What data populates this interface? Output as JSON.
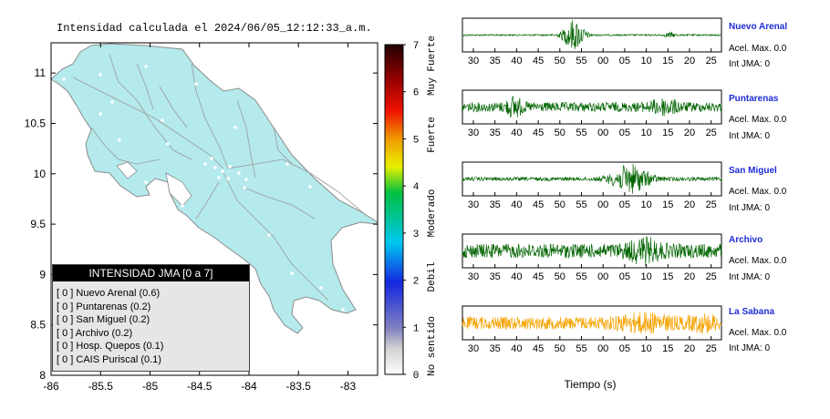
{
  "map": {
    "title": "Intensidad calculada el 2024/06/05_12:12:33_a.m.",
    "x_ticks": [
      "-86",
      "-85.5",
      "-85",
      "-84.5",
      "-84",
      "-83.5",
      "-83"
    ],
    "y_ticks": [
      "11",
      "10.5",
      "10",
      "9.5",
      "9",
      "8.5",
      "8"
    ],
    "land_color": "#b4eaec"
  },
  "legend": {
    "header": "INTENSIDAD JMA [0 a 7]",
    "items": [
      {
        "value": "[ 0 ]",
        "label": "Nuevo Arenal (0.6)"
      },
      {
        "value": "[ 0 ]",
        "label": "Puntarenas (0.2)"
      },
      {
        "value": "[ 0 ]",
        "label": "San Miguel (0.2)"
      },
      {
        "value": "[ 0 ]",
        "label": "Archivo (0.2)"
      },
      {
        "value": "[ 0 ]",
        "label": "Hosp. Quepos (0.1)"
      },
      {
        "value": "[ 0 ]",
        "label": "CAIS Puriscal (0.1)"
      }
    ]
  },
  "scale": {
    "ticks": [
      "0",
      "1",
      "2",
      "3",
      "4",
      "5",
      "6",
      "7"
    ],
    "category_labels": [
      "No sentido",
      "Debil",
      "Moderado",
      "Fuerte",
      "Muy Fuerte"
    ]
  },
  "stations": [
    {
      "name": "Nuevo Arenal",
      "acc_label": "Acel. Max. 0.0",
      "jma_label": "Int JMA: 0",
      "color": "#006400"
    },
    {
      "name": "Puntarenas",
      "acc_label": "Acel. Max. 0.0",
      "jma_label": "Int JMA: 0",
      "color": "#006400"
    },
    {
      "name": "San Miguel",
      "acc_label": "Acel. Max. 0.0",
      "jma_label": "Int JMA: 0",
      "color": "#006400"
    },
    {
      "name": "Archivo",
      "acc_label": "Acel. Max. 0.0",
      "jma_label": "Int JMA: 0",
      "color": "#006400"
    },
    {
      "name": "La Sabana",
      "acc_label": "Acel. Max. 0.0",
      "jma_label": "Int JMA: 0",
      "color": "#f5a300"
    }
  ],
  "time_ticks": [
    "30",
    "35",
    "40",
    "45",
    "50",
    "55",
    "00",
    "05",
    "10",
    "15",
    "20",
    "25"
  ],
  "time_axis_label": "Tiempo (s)",
  "chart_data": {
    "type": "line",
    "title": "Intensidad calculada el 2024/06/05_12:12:33_a.m.",
    "xlabel": "Tiempo (s)",
    "x_ticks": [
      "30",
      "35",
      "40",
      "45",
      "50",
      "55",
      "00",
      "05",
      "10",
      "15",
      "20",
      "25"
    ],
    "series": [
      {
        "name": "Nuevo Arenal",
        "acel_max": 0.0,
        "int_jma": 0
      },
      {
        "name": "Puntarenas",
        "acel_max": 0.0,
        "int_jma": 0
      },
      {
        "name": "San Miguel",
        "acel_max": 0.0,
        "int_jma": 0
      },
      {
        "name": "Archivo",
        "acel_max": 0.0,
        "int_jma": 0
      },
      {
        "name": "La Sabana",
        "acel_max": 0.0,
        "int_jma": 0
      }
    ],
    "map_intensities": [
      {
        "name": "Nuevo Arenal",
        "value": 0.6
      },
      {
        "name": "Puntarenas",
        "value": 0.2
      },
      {
        "name": "San Miguel",
        "value": 0.2
      },
      {
        "name": "Archivo",
        "value": 0.2
      },
      {
        "name": "Hosp. Quepos",
        "value": 0.1
      },
      {
        "name": "CAIS Puriscal",
        "value": 0.1
      }
    ],
    "map_xlim": [
      -86,
      -82.7
    ],
    "map_ylim": [
      8,
      11.3
    ],
    "scale_range": [
      0,
      7
    ]
  }
}
